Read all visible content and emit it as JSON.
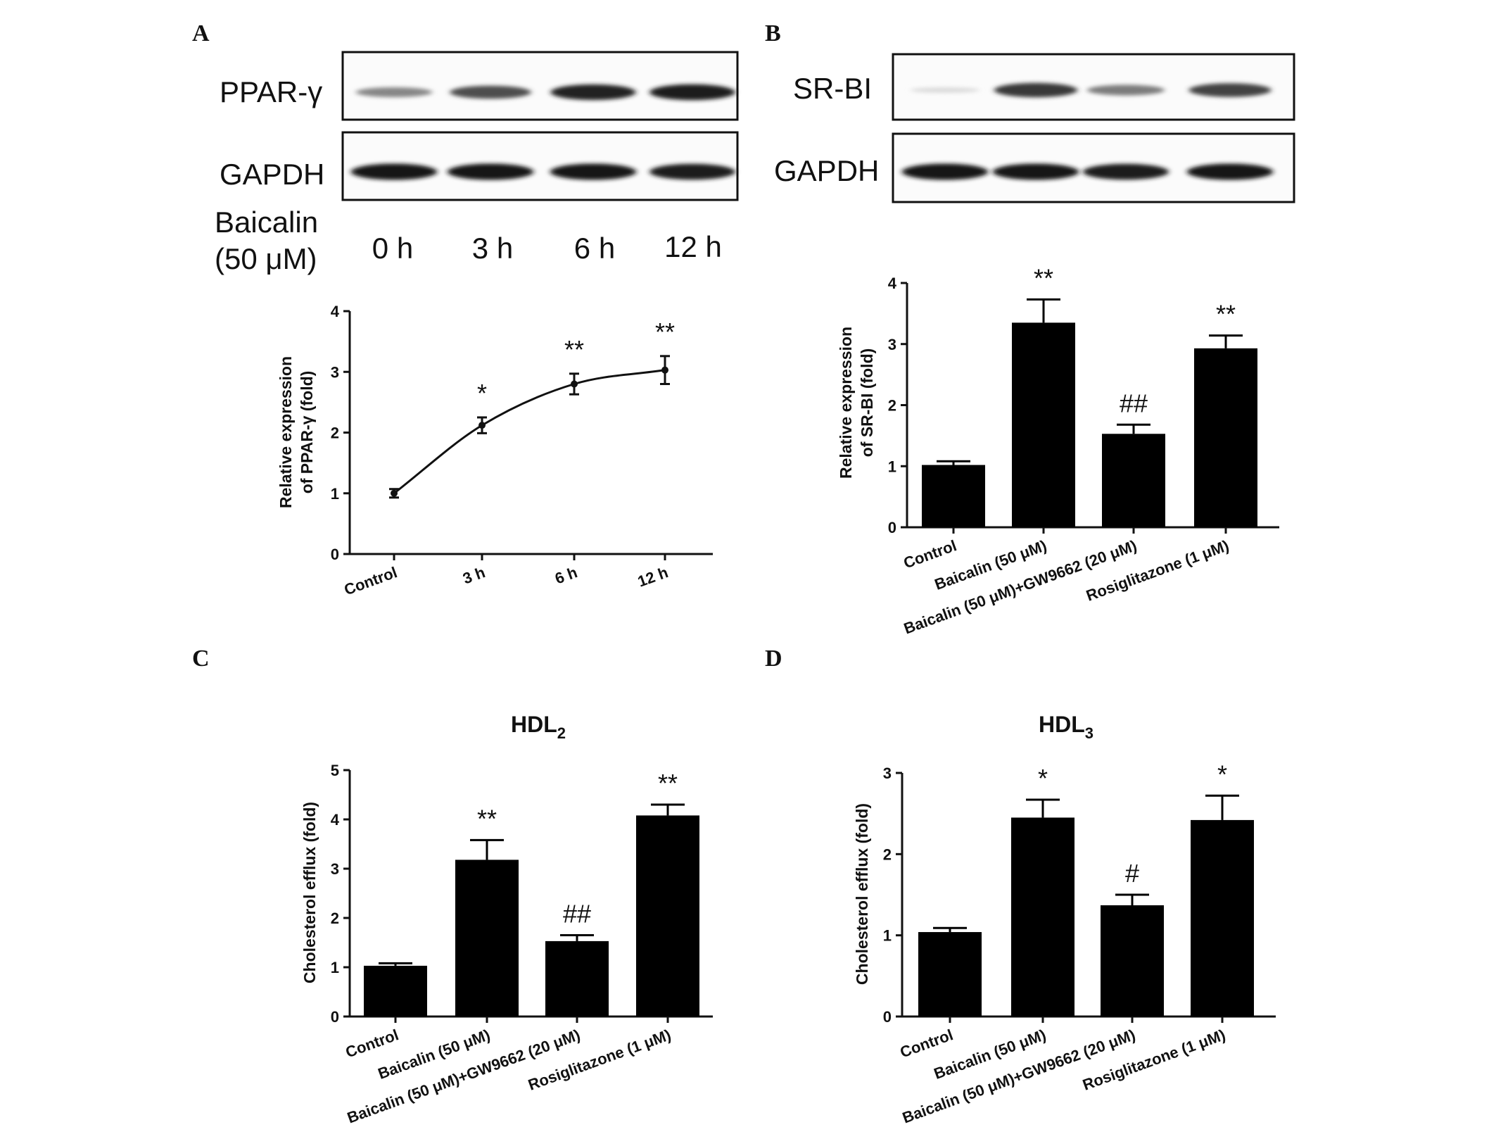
{
  "panels": {
    "A": "A",
    "B": "B",
    "C": "C",
    "D": "D"
  },
  "blots": {
    "A": {
      "rows": [
        "PPAR-γ",
        "GAPDH"
      ],
      "treatment_label": [
        "Baicalin",
        "(50 μM)"
      ],
      "lanes": [
        "0 h",
        "3 h",
        "6 h",
        "12 h"
      ],
      "band_intensity": [
        [
          0.45,
          0.7,
          0.9,
          0.92
        ],
        [
          0.95,
          0.95,
          0.95,
          0.92
        ]
      ]
    },
    "B": {
      "rows": [
        "SR-BI",
        "GAPDH"
      ],
      "band_intensity": [
        [
          0.08,
          0.8,
          0.5,
          0.75
        ],
        [
          0.95,
          0.95,
          0.92,
          0.95
        ]
      ]
    }
  },
  "chart_data": [
    {
      "panel": "A",
      "type": "line",
      "categories": [
        "Control",
        "3 h",
        "6 h",
        "12 h"
      ],
      "values": [
        1.0,
        2.12,
        2.8,
        3.03
      ],
      "errors": [
        0.07,
        0.13,
        0.17,
        0.23
      ],
      "significance": [
        "",
        "*",
        "**",
        "**"
      ],
      "title": "",
      "ylabel": [
        "Relative expression",
        "of PPAR-γ (fold)"
      ],
      "ylim": [
        0,
        4
      ],
      "yticks": [
        "0",
        "1",
        "2",
        "3",
        "4"
      ]
    },
    {
      "panel": "B",
      "type": "bar",
      "categories": [
        "Control",
        "Baicalin  (50 μM)",
        "Baicalin  (50 μM)+GW9662 (20 μM)",
        "Rosiglitazone  (1 μM)"
      ],
      "values": [
        1.02,
        3.35,
        1.53,
        2.93
      ],
      "errors": [
        0.06,
        0.38,
        0.15,
        0.21
      ],
      "significance": [
        "",
        "**",
        "##",
        "**"
      ],
      "title": "",
      "ylabel": [
        "Relative expression",
        "of SR-BI (fold)"
      ],
      "ylim": [
        0,
        4
      ],
      "yticks": [
        "0",
        "1",
        "2",
        "3",
        "4"
      ]
    },
    {
      "panel": "C",
      "type": "bar",
      "categories": [
        "Control",
        "Baicalin  (50 μM)",
        "Baicalin  (50 μM)+GW9662 (20 μM)",
        "Rosiglitazone  (1 μM)"
      ],
      "values": [
        1.03,
        3.18,
        1.53,
        4.08
      ],
      "errors": [
        0.05,
        0.4,
        0.12,
        0.22
      ],
      "significance": [
        "",
        "**",
        "##",
        "**"
      ],
      "title": "HDL",
      "title_sub": "2",
      "ylabel": [
        "Cholesterol efflux (fold)"
      ],
      "ylim": [
        0,
        5
      ],
      "yticks": [
        "0",
        "1",
        "2",
        "3",
        "4",
        "5"
      ]
    },
    {
      "panel": "D",
      "type": "bar",
      "categories": [
        "Control",
        "Baicalin  (50 μM)",
        "Baicalin  (50 μM)+GW9662 (20 μM)",
        "Rosiglitazone  (1 μM)"
      ],
      "values": [
        1.04,
        2.45,
        1.37,
        2.42
      ],
      "errors": [
        0.05,
        0.22,
        0.13,
        0.3
      ],
      "significance": [
        "",
        "*",
        "#",
        "*"
      ],
      "title": "HDL",
      "title_sub": "3",
      "ylabel": [
        "Cholesterol efflux (fold)"
      ],
      "ylim": [
        0,
        3
      ],
      "yticks": [
        "0",
        "1",
        "2",
        "3"
      ]
    }
  ]
}
